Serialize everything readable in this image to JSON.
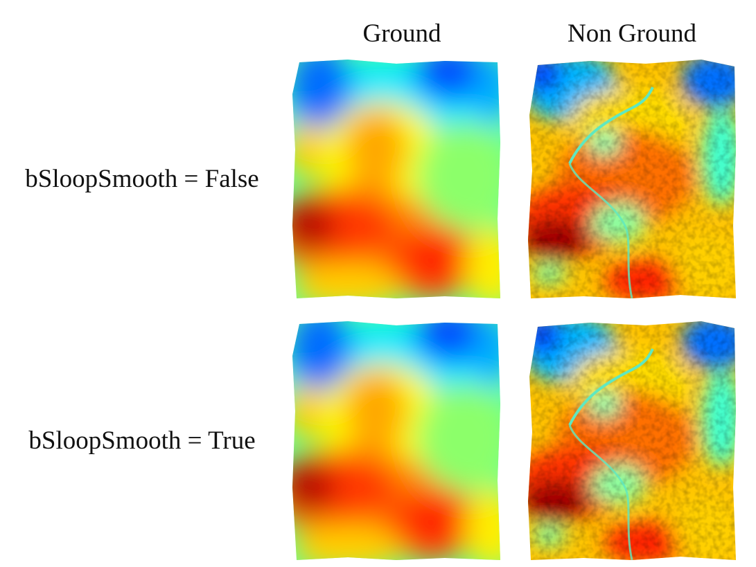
{
  "columns": {
    "ground": "Ground",
    "non_ground": "Non Ground"
  },
  "rows": [
    {
      "label": "bSloopSmooth = False"
    },
    {
      "label": "bSloopSmooth = True"
    }
  ],
  "colormap": {
    "name": "jet",
    "stops": [
      "#00008b",
      "#0050ff",
      "#00e5ff",
      "#7fff7f",
      "#ffff00",
      "#ff9a00",
      "#ff2a00",
      "#8b0000"
    ]
  },
  "panels": [
    {
      "row": 0,
      "column": "ground",
      "type": "elevation-map"
    },
    {
      "row": 0,
      "column": "non_ground",
      "type": "point-cloud"
    },
    {
      "row": 1,
      "column": "ground",
      "type": "elevation-map"
    },
    {
      "row": 1,
      "column": "non_ground",
      "type": "point-cloud"
    }
  ]
}
